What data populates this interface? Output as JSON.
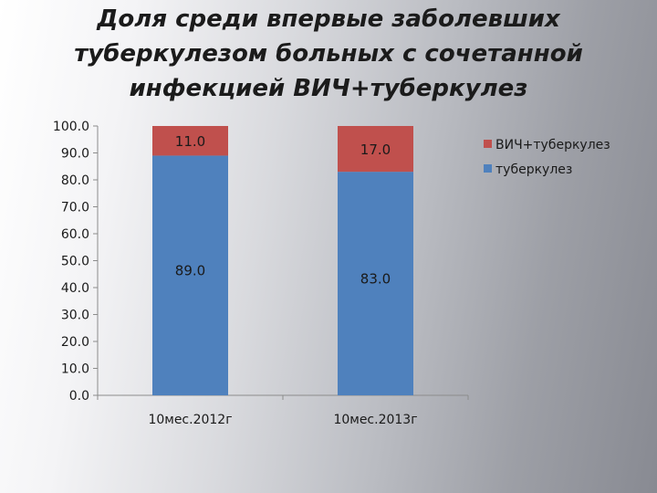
{
  "slide": {
    "title_lines": [
      "Доля среди впервые заболевших",
      "туберкулезом больных с сочетанной",
      "инфекцией ВИЧ+туберкулез"
    ]
  },
  "chart_data": {
    "type": "bar",
    "stacked": true,
    "categories": [
      "10мес.2012г",
      "10мес.2013г"
    ],
    "series": [
      {
        "name": "туберкулез",
        "values": [
          89.0,
          83.0
        ],
        "color": "#4f81bd"
      },
      {
        "name": "ВИЧ+туберкулез",
        "values": [
          11.0,
          17.0
        ],
        "color": "#c0504d"
      }
    ],
    "data_labels": [
      [
        "89.0",
        "83.0"
      ],
      [
        "11.0",
        "17.0"
      ]
    ],
    "legend_order": [
      "ВИЧ+туберкулез",
      "туберкулез"
    ],
    "ylim": [
      0,
      100
    ],
    "y_ticks": [
      "0.0",
      "10.0",
      "20.0",
      "30.0",
      "40.0",
      "50.0",
      "60.0",
      "70.0",
      "80.0",
      "90.0",
      "100.0"
    ],
    "legend_position": "right",
    "grid": false
  }
}
